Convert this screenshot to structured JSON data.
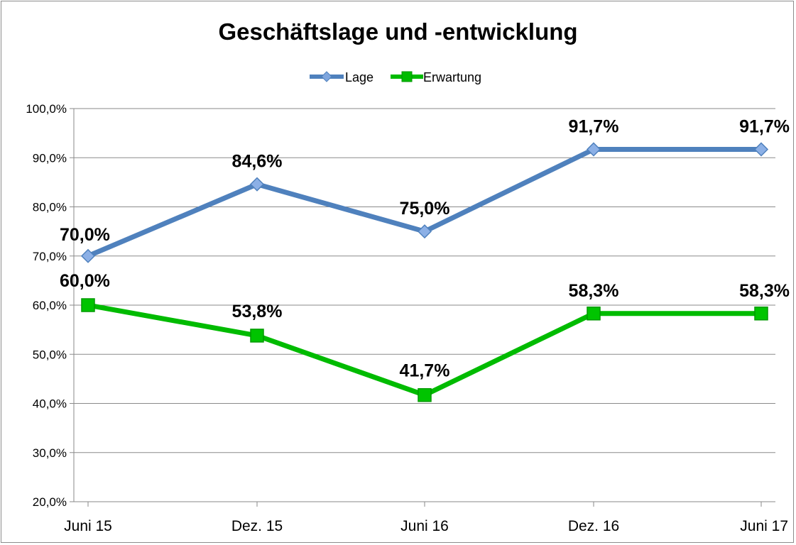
{
  "chart_data": {
    "type": "line",
    "title": "Geschäftslage und -entwicklung",
    "xlabel": "",
    "ylabel": "",
    "categories": [
      "Juni 15",
      "Dez. 15",
      "Juni 16",
      "Dez. 16",
      "Juni 17"
    ],
    "ylim": [
      20,
      100
    ],
    "yticks": [
      "20,0%",
      "30,0%",
      "40,0%",
      "50,0%",
      "60,0%",
      "70,0%",
      "80,0%",
      "90,0%",
      "100,0%"
    ],
    "grid": true,
    "legend_position": "top",
    "series": [
      {
        "name": "Lage",
        "color": "#4f81bd",
        "marker": "diamond",
        "values": [
          70.0,
          84.6,
          75.0,
          91.7,
          91.7
        ],
        "labels": [
          "70,0%",
          "84,6%",
          "75,0%",
          "91,7%",
          "91,7%"
        ]
      },
      {
        "name": "Erwartung",
        "color": "#00bb00",
        "marker": "square",
        "values": [
          60.0,
          53.8,
          41.7,
          58.3,
          58.3
        ],
        "labels": [
          "60,0%",
          "53,8%",
          "41,7%",
          "58,3%",
          "58,3%"
        ]
      }
    ]
  }
}
